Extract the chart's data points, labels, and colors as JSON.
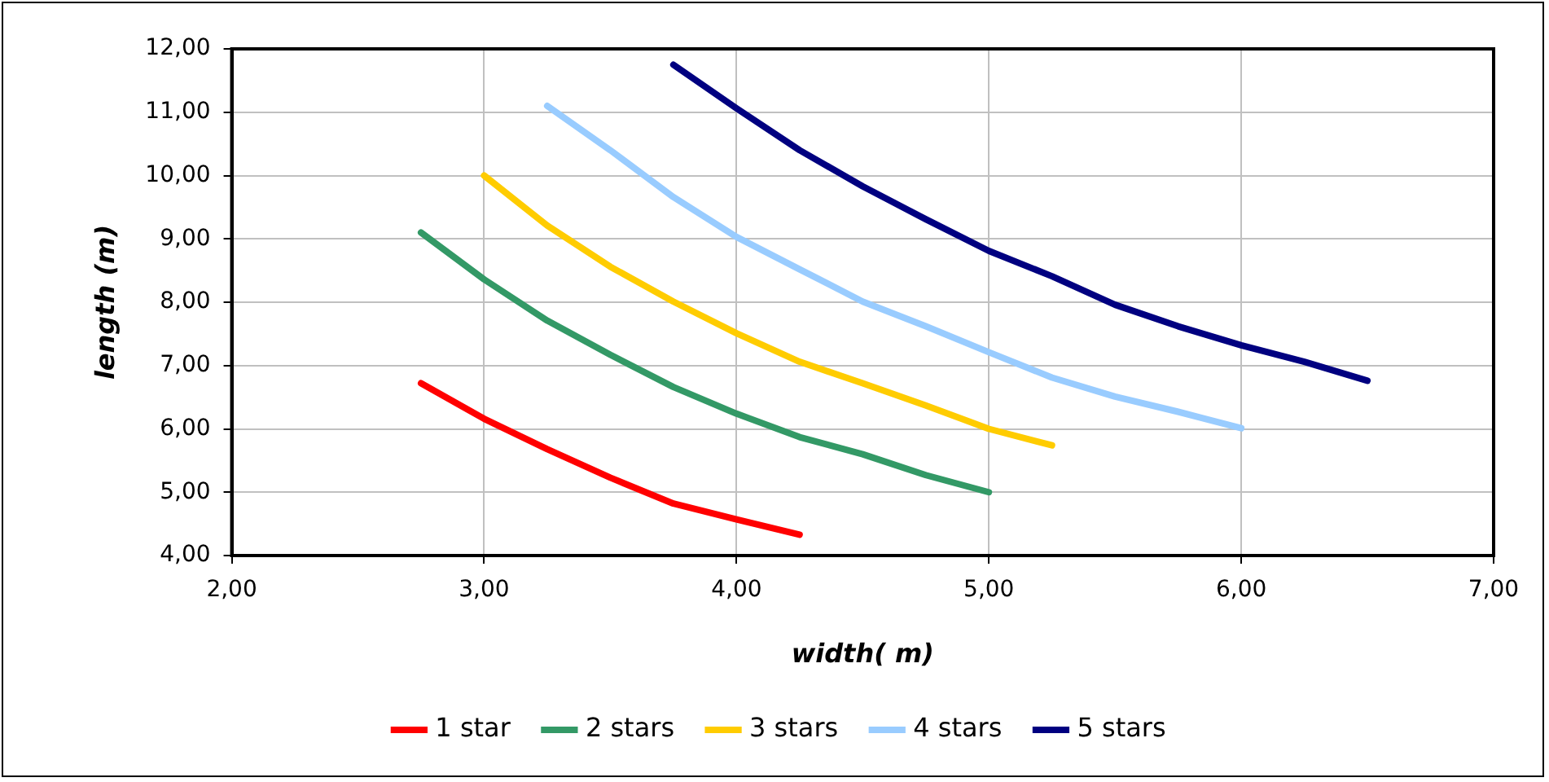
{
  "chart_data": {
    "type": "line",
    "xlabel": "width( m)",
    "ylabel": "length (m)",
    "xlim": [
      2,
      7
    ],
    "ylim": [
      4,
      12
    ],
    "xticks": [
      {
        "value": 2,
        "label": "2,00"
      },
      {
        "value": 3,
        "label": "3,00"
      },
      {
        "value": 4,
        "label": "4,00"
      },
      {
        "value": 5,
        "label": "5,00"
      },
      {
        "value": 6,
        "label": "6,00"
      },
      {
        "value": 7,
        "label": "7,00"
      }
    ],
    "yticks": [
      {
        "value": 4,
        "label": "4,00"
      },
      {
        "value": 5,
        "label": "5,00"
      },
      {
        "value": 6,
        "label": "6,00"
      },
      {
        "value": 7,
        "label": "7,00"
      },
      {
        "value": 8,
        "label": "8,00"
      },
      {
        "value": 9,
        "label": "9,00"
      },
      {
        "value": 10,
        "label": "10,00"
      },
      {
        "value": 11,
        "label": "11,00"
      },
      {
        "value": 12,
        "label": "12,00"
      }
    ],
    "grid": true,
    "legend": "bottom",
    "marker": "none",
    "line_style": "solid",
    "series": [
      {
        "name": "1 star",
        "color": "#ff0000",
        "x": [
          2.75,
          3,
          3.25,
          3.5,
          3.75,
          4,
          4.25
        ],
        "values": [
          6.72,
          6.16,
          5.68,
          5.23,
          4.82,
          4.57,
          4.33
        ]
      },
      {
        "name": "2 stars",
        "color": "#339966",
        "x": [
          2.75,
          3,
          3.25,
          3.5,
          3.75,
          4,
          4.25,
          4.5,
          4.75,
          5
        ],
        "values": [
          9.1,
          8.36,
          7.71,
          7.17,
          6.66,
          6.24,
          5.87,
          5.6,
          5.27,
          5.0
        ]
      },
      {
        "name": "3 stars",
        "color": "#ffcc00",
        "x": [
          3,
          3.25,
          3.5,
          3.75,
          4,
          4.25,
          4.5,
          4.75,
          5,
          5.25
        ],
        "values": [
          10.0,
          9.21,
          8.56,
          8.01,
          7.51,
          7.06,
          6.72,
          6.37,
          6.0,
          5.74
        ]
      },
      {
        "name": "4 stars",
        "color": "#99ccff",
        "x": [
          3.25,
          3.5,
          3.75,
          4,
          4.25,
          4.5,
          4.75,
          5,
          5.25,
          5.5,
          5.75,
          6
        ],
        "values": [
          11.1,
          10.4,
          9.66,
          9.03,
          8.52,
          8.01,
          7.62,
          7.21,
          6.81,
          6.51,
          6.27,
          6.01
        ]
      },
      {
        "name": "5 stars",
        "color": "#000080",
        "x": [
          3.75,
          4,
          4.25,
          4.5,
          4.75,
          5,
          5.25,
          5.5,
          5.75,
          6,
          6.25,
          6.5
        ],
        "values": [
          11.75,
          11.06,
          10.4,
          9.83,
          9.31,
          8.81,
          8.41,
          7.96,
          7.62,
          7.32,
          7.06,
          6.76
        ]
      }
    ]
  }
}
